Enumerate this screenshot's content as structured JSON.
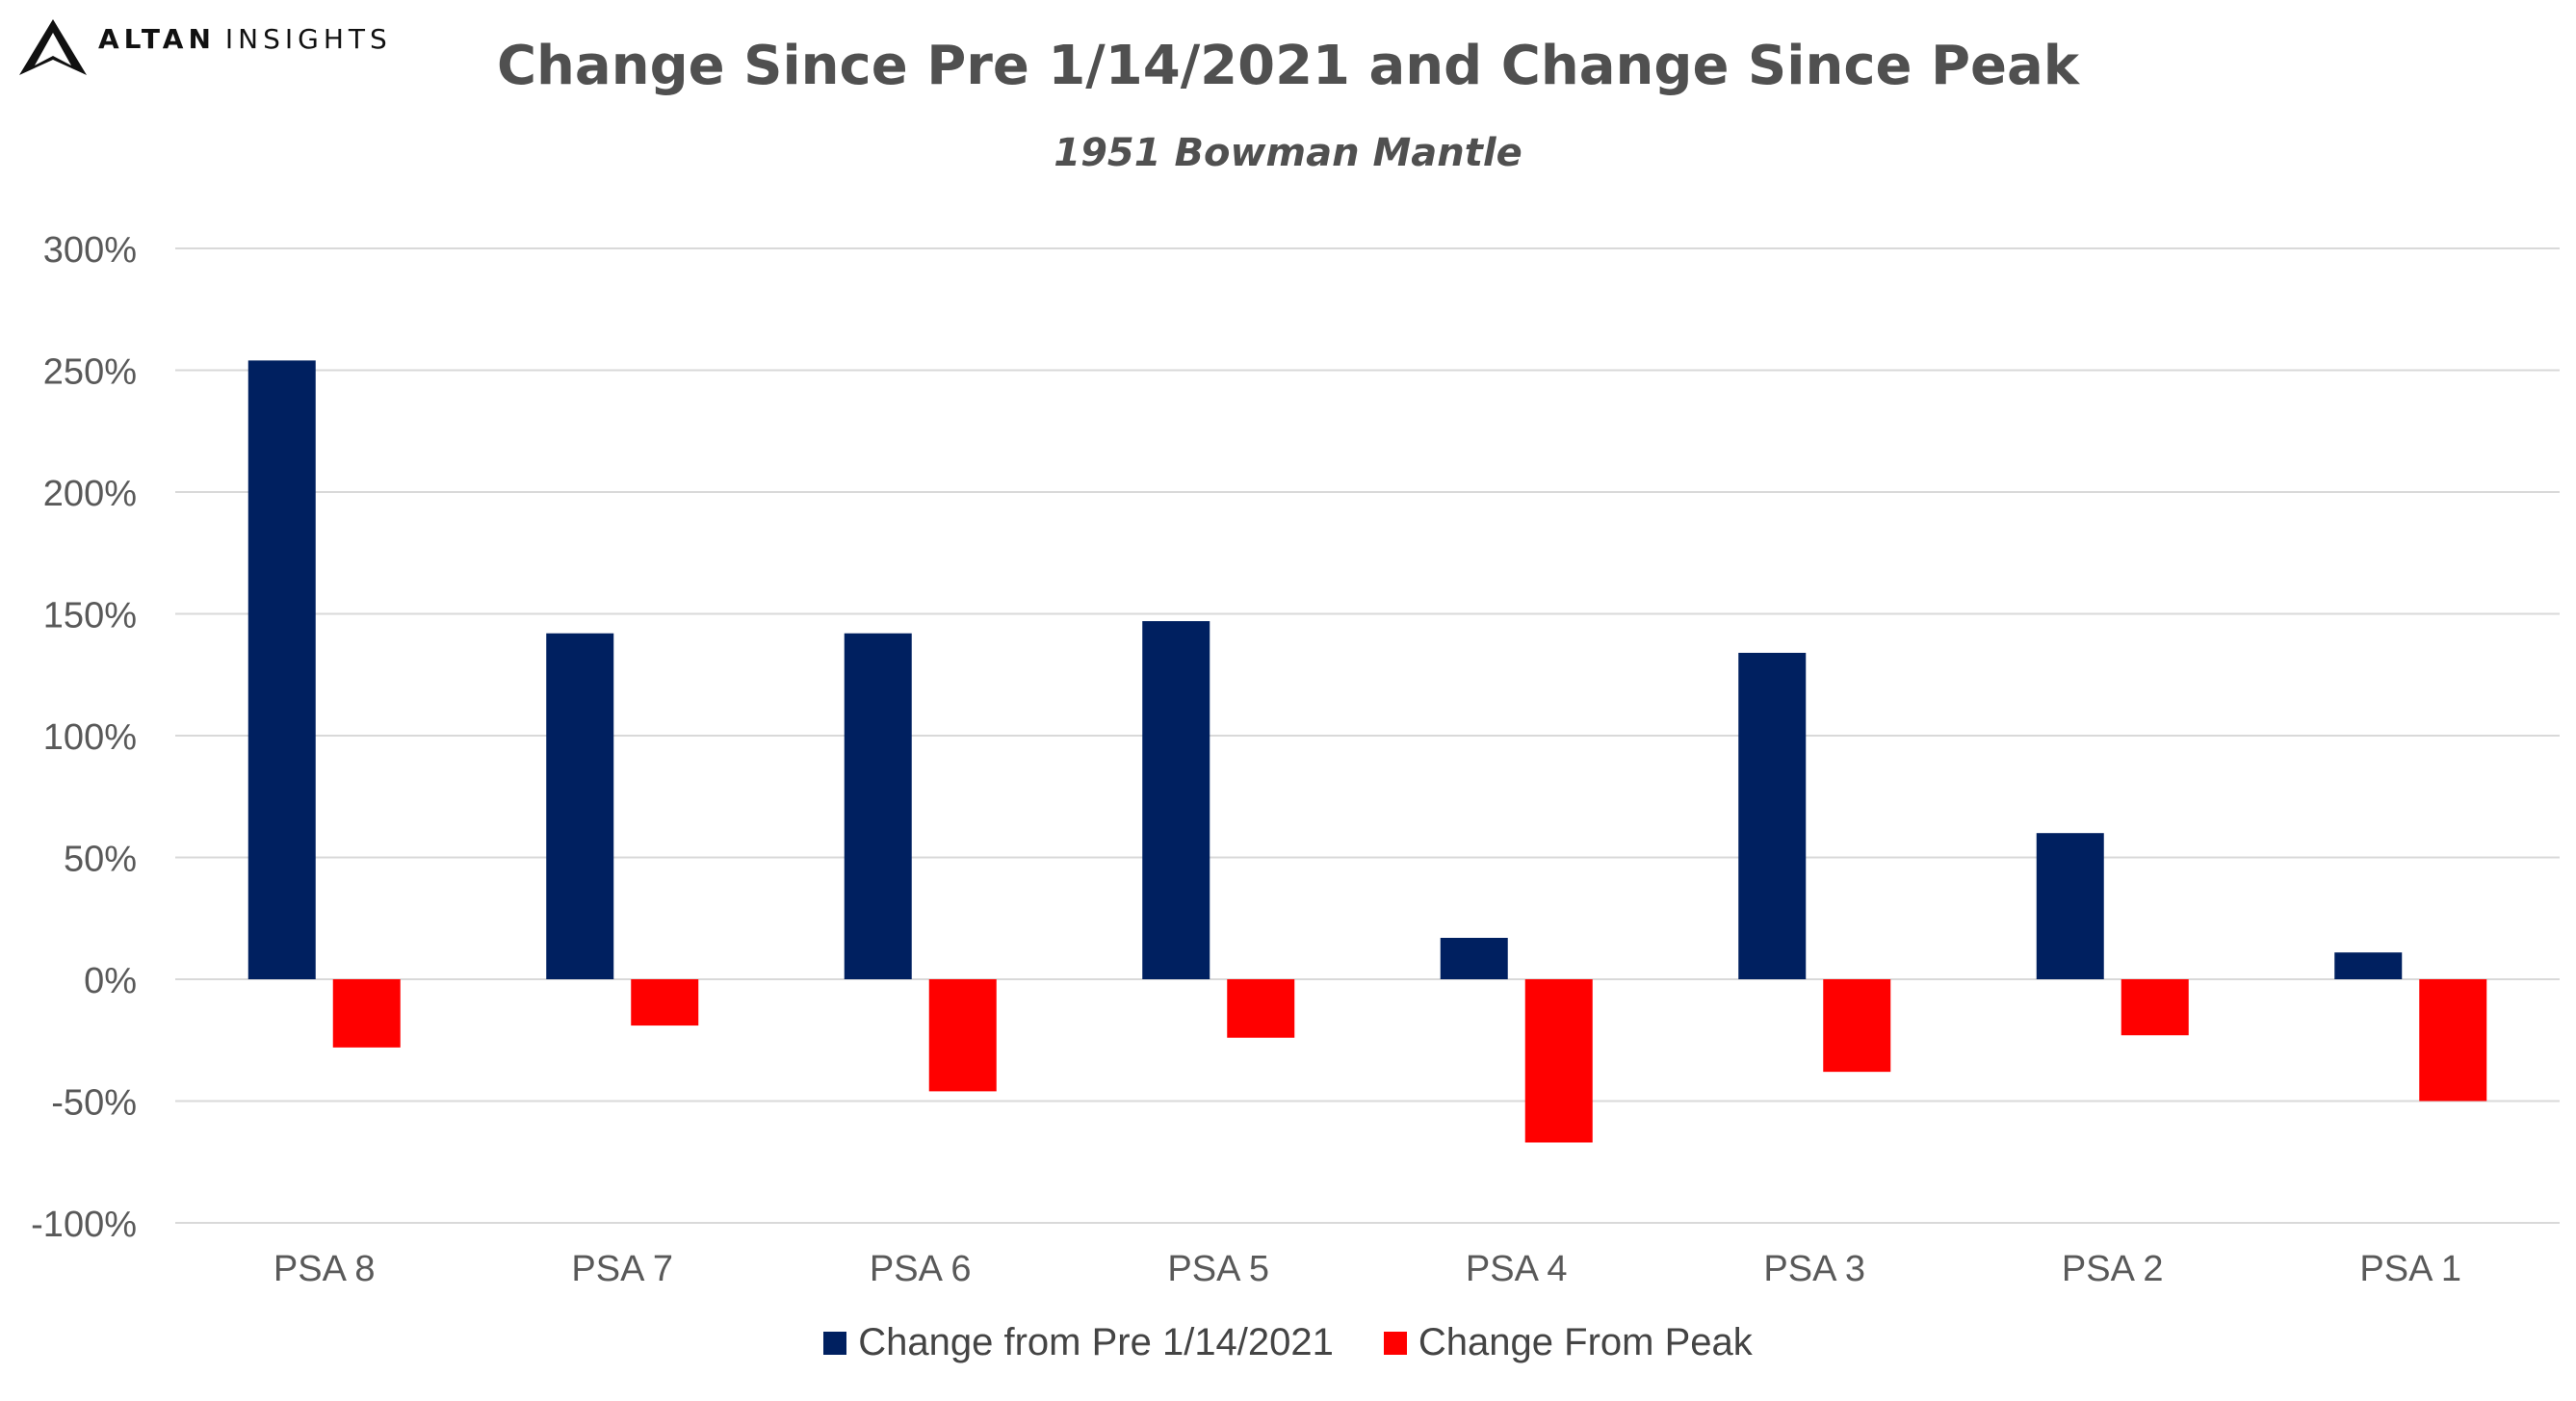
{
  "logo": {
    "brand": "ALTAN",
    "suffix": "INSIGHTS"
  },
  "chart_data": {
    "type": "bar",
    "title": "Change Since Pre 1/14/2021 and Change Since Peak",
    "subtitle": "1951 Bowman Mantle",
    "xlabel": "",
    "ylabel": "",
    "categories": [
      "PSA 8",
      "PSA 7",
      "PSA 6",
      "PSA 5",
      "PSA 4",
      "PSA 3",
      "PSA 2",
      "PSA 1"
    ],
    "series": [
      {
        "name": "Change from Pre 1/14/2021",
        "color": "#002060",
        "values": [
          254,
          142,
          142,
          147,
          17,
          134,
          60,
          11
        ]
      },
      {
        "name": "Change From Peak",
        "color": "#ff0000",
        "values": [
          -28,
          -19,
          -46,
          -24,
          -67,
          -38,
          -23,
          -50
        ]
      }
    ],
    "ylim": [
      -100,
      300
    ],
    "yticks": [
      300,
      250,
      200,
      150,
      100,
      50,
      0,
      -50,
      -100
    ],
    "ytick_labels": [
      "300%",
      "250%",
      "200%",
      "150%",
      "100%",
      "50%",
      "0%",
      "-50%",
      "-100%"
    ],
    "grid": true,
    "legend": "bottom"
  }
}
